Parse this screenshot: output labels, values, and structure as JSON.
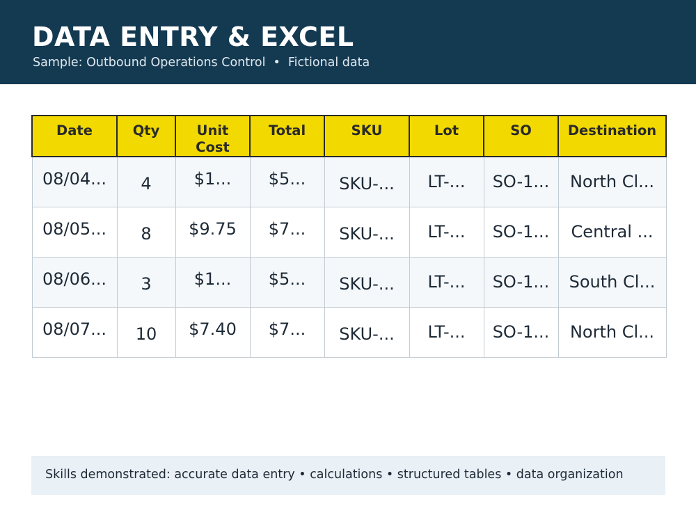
{
  "header": {
    "title": "DATA ENTRY & EXCEL",
    "subtitle_left": "Sample: Outbound Operations Control",
    "subtitle_sep": "•",
    "subtitle_right": "Fictional data",
    "background_color": "#143a52"
  },
  "table": {
    "header_color": "#f2d900",
    "columns": [
      {
        "key": "date",
        "label": "Date"
      },
      {
        "key": "qty",
        "label": "Qty"
      },
      {
        "key": "unit_cost",
        "label": "Unit Cost",
        "label_line1": "Unit",
        "label_line2": "Cost"
      },
      {
        "key": "total",
        "label": "Total"
      },
      {
        "key": "sku",
        "label": "SKU"
      },
      {
        "key": "lot",
        "label": "Lot"
      },
      {
        "key": "so",
        "label": "SO"
      },
      {
        "key": "destination",
        "label": "Destination"
      }
    ],
    "rows": [
      {
        "date": "08/04...",
        "qty": "4",
        "unit_cost": "$1...",
        "total": "$5...",
        "sku": "SKU-...",
        "lot": "LT-...",
        "so": "SO-1...",
        "destination": "North Cl..."
      },
      {
        "date": "08/05...",
        "qty": "8",
        "unit_cost": "$9.75",
        "total": "$7...",
        "sku": "SKU-...",
        "lot": "LT-...",
        "so": "SO-1...",
        "destination": "Central ..."
      },
      {
        "date": "08/06...",
        "qty": "3",
        "unit_cost": "$1...",
        "total": "$5...",
        "sku": "SKU-...",
        "lot": "LT-...",
        "so": "SO-1...",
        "destination": "South Cl..."
      },
      {
        "date": "08/07...",
        "qty": "10",
        "unit_cost": "$7.40",
        "total": "$7...",
        "sku": "SKU-...",
        "lot": "LT-...",
        "so": "SO-1...",
        "destination": "North Cl..."
      }
    ]
  },
  "footer": {
    "text": "Skills demonstrated: accurate data entry • calculations • structured tables • data organization"
  }
}
